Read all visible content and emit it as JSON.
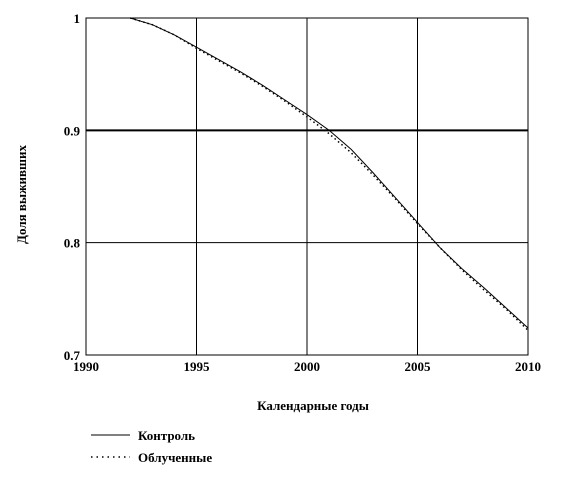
{
  "chart_data": {
    "type": "line",
    "title": "",
    "xlabel": "Календарные годы",
    "ylabel": "Доля выживших",
    "xlim": [
      1990,
      2010
    ],
    "ylim": [
      0.7,
      1.0
    ],
    "xticks": [
      1990,
      1995,
      2000,
      2005,
      2010
    ],
    "yticks": [
      0.7,
      0.8,
      0.9,
      1.0
    ],
    "xtick_labels": [
      "1990",
      "1995",
      "2000",
      "2005",
      "2010"
    ],
    "ytick_labels": [
      "0.7",
      "0.8",
      "0.9",
      "1"
    ],
    "grid": true,
    "legend_position": "bottom-left",
    "series": [
      {
        "name": "Контроль",
        "style": "solid",
        "color": "#000000",
        "x": [
          1992,
          1993,
          1994,
          1995,
          1996,
          1997,
          1998,
          1999,
          2000,
          2001,
          2002,
          2003,
          2004,
          2005,
          2006,
          2007,
          2008,
          2009,
          2010
        ],
        "y": [
          1.0,
          0.994,
          0.985,
          0.974,
          0.963,
          0.952,
          0.94,
          0.927,
          0.914,
          0.9,
          0.883,
          0.862,
          0.84,
          0.818,
          0.796,
          0.777,
          0.76,
          0.742,
          0.724
        ]
      },
      {
        "name": "Облученные",
        "style": "dotted",
        "color": "#000000",
        "x": [
          1992,
          1993,
          1994,
          1995,
          1996,
          1997,
          1998,
          1999,
          2000,
          2001,
          2002,
          2003,
          2004,
          2005,
          2006,
          2007,
          2008,
          2009,
          2010
        ],
        "y": [
          1.0,
          0.994,
          0.985,
          0.973,
          0.962,
          0.951,
          0.939,
          0.926,
          0.912,
          0.897,
          0.88,
          0.86,
          0.839,
          0.817,
          0.796,
          0.776,
          0.758,
          0.741,
          0.722
        ]
      }
    ]
  }
}
